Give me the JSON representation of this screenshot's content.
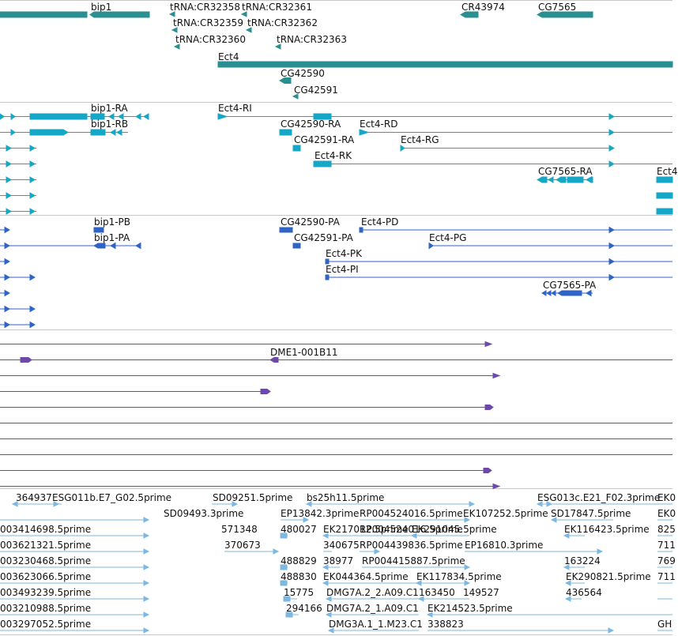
{
  "colors": {
    "gene": "#2a8f92",
    "transcript": "#17a7c6",
    "protein": "#2f64c6",
    "cdna": "#6d4aa8",
    "est": "#7eb8e0"
  },
  "tracks": {
    "genes": {
      "labels": [
        "bip1",
        "tRNA:CR32358",
        "tRNA:CR32361",
        "CR43974",
        "CG7565",
        "tRNA:CR32359",
        "tRNA:CR32362",
        "tRNA:CR32360",
        "tRNA:CR32363",
        "Ect4",
        "CG42590",
        "CG42591"
      ]
    },
    "transcripts": {
      "labels": [
        "bip1-RA",
        "Ect4-RI",
        "bip1-RB",
        "CG42590-RA",
        "Ect4-RD",
        "CG42591-RA",
        "Ect4-RG",
        "Ect4-RK",
        "CG7565-RA",
        "Ect4"
      ]
    },
    "proteins": {
      "labels": [
        "bip1-PB",
        "CG42590-PA",
        "Ect4-PD",
        "bip1-PA",
        "CG42591-PA",
        "Ect4-PG",
        "Ect4-PK",
        "Ect4-PI",
        "CG7565-PA"
      ]
    },
    "cdna": {
      "labels": [
        "DME1-001B11"
      ]
    },
    "ests": {
      "labels": [
        "364937",
        "ESG011b.E7_G02.5prime",
        "SD09251.5prime",
        "bs25h11.5prime",
        "ESG013c.E21_F02.3prime",
        "EK0",
        "SD09493.3prime",
        "EP13842.3prime",
        "RP004524016.5prime",
        "EK107252.5prime",
        "SD17847.5prime",
        "EK0",
        "003414698.5prime",
        "571348",
        "480027",
        "EK217012.5prime",
        "RP004524016.5prime",
        "EK291045.5prime",
        "EK116423.5prime",
        "825",
        "003621321.5prime",
        "370673",
        "340675",
        "RP004439836.5prime",
        "EP16810.3prime",
        "711",
        "003230468.5prime",
        "488829",
        "38977",
        "RP004415887.5prime",
        "163224",
        "769",
        "003623066.5prime",
        "488830",
        "EK044364.5prime",
        "EK117834.5prime",
        "EK290821.5prime",
        "711",
        "003493239.5prime",
        "15775",
        "DMG7A.2_2.A09.C1",
        "163450",
        "149527",
        "436564",
        "003210988.5prime",
        "294166",
        "DMG7A.2_1.A09.C1",
        "EK214523.5prime",
        "003297052.5prime",
        "DMG3A.1_1.M23.C1",
        "338823",
        "GH"
      ]
    }
  }
}
